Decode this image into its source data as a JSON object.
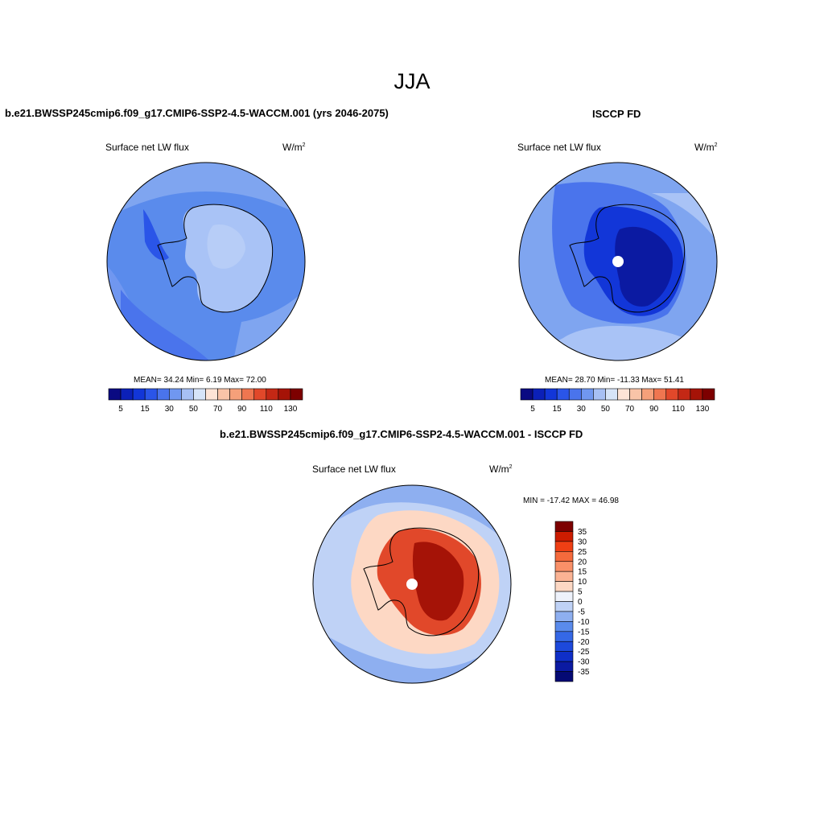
{
  "figure": {
    "title": "JJA"
  },
  "panels": {
    "model": {
      "title": "b.e21.BWSSP245cmip6.f09_g17.CMIP6-SSP2-4.5-WACCM.001 (yrs 2046-2075)",
      "variable": "Surface net LW flux",
      "units_base": "W/m",
      "units_exp": "2",
      "stats_text": "MEAN=  34.24  Min=   6.19  Max=  72.00"
    },
    "obs": {
      "title": "ISCCP FD",
      "variable": "Surface net LW flux",
      "units_base": "W/m",
      "units_exp": "2",
      "stats_text": "MEAN=  28.70  Min= -11.33  Max=  51.41"
    },
    "diff": {
      "title": "b.e21.BWSSP245cmip6.f09_g17.CMIP6-SSP2-4.5-WACCM.001 - ISCCP FD",
      "variable": "Surface net LW flux",
      "units_base": "W/m",
      "units_exp": "2",
      "stats_text": "MIN = -17.42 MAX =  46.98"
    }
  },
  "colorbars": {
    "absolute": {
      "colors": [
        "#0a0a82",
        "#0b20b8",
        "#1236d8",
        "#2a55e8",
        "#4a74ec",
        "#7097f0",
        "#a7c0f4",
        "#d6e4f8",
        "#fde4d6",
        "#f9c4a8",
        "#f5a07a",
        "#ef7650",
        "#e1482a",
        "#c42815",
        "#a51307",
        "#7d0000"
      ],
      "tick_labels": [
        "5",
        "15",
        "30",
        "50",
        "70",
        "90",
        "110",
        "130"
      ]
    },
    "diff": {
      "colors": [
        "#7d0000",
        "#cc1c00",
        "#ef3f14",
        "#f56a3c",
        "#f99068",
        "#fbb394",
        "#fdd8c4",
        "#eef2fb",
        "#bfd2f6",
        "#8eaff0",
        "#5a8bec",
        "#3568e6",
        "#1d49dc",
        "#0f2fc8",
        "#0b1aa2",
        "#050a74"
      ],
      "tick_labels": [
        "35",
        "30",
        "25",
        "20",
        "15",
        "10",
        "5",
        "0",
        "-5",
        "-10",
        "-15",
        "-20",
        "-25",
        "-30",
        "-35"
      ]
    }
  },
  "map_colors": {
    "ocean_mid": "#5a8bec",
    "ocean_light": "#7fa5f0",
    "ice_light": "#a9c3f6",
    "deep_blue": "#1236d8",
    "darkest": "#0b1aa2",
    "diff_ocean": "#bfd2f6",
    "diff_pale": "#fdd8c4",
    "diff_red": "#e1482a",
    "diff_dark": "#a51307"
  }
}
